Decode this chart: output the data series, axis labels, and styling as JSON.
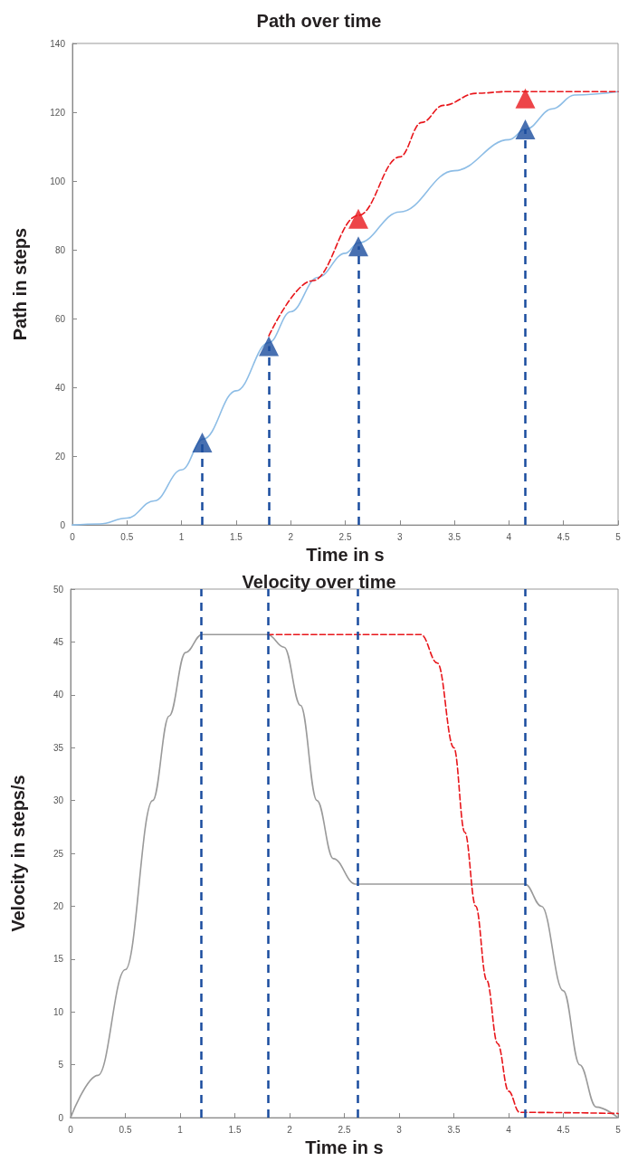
{
  "chart_data": [
    {
      "type": "line",
      "title": "Path over time",
      "xlabel": "Time in s",
      "ylabel": "Path in steps",
      "xlim": [
        0,
        5
      ],
      "xticks": [
        0,
        0.5,
        1,
        1.5,
        2,
        2.5,
        3,
        3.5,
        4,
        4.5,
        5
      ],
      "ylim": [
        0,
        140
      ],
      "yticks": [
        0,
        20,
        40,
        60,
        80,
        100,
        120,
        140
      ],
      "series": [
        {
          "color": "#8dbde6",
          "line_style": "solid",
          "marker": "none",
          "x": [
            0,
            0.25,
            0.5,
            0.75,
            1,
            1.2,
            1.5,
            1.8,
            2,
            2.25,
            2.5,
            2.62,
            3,
            3.5,
            4,
            4.15,
            4.4,
            4.6,
            5
          ],
          "values": [
            0,
            0.3,
            2,
            7,
            16,
            25,
            39,
            53,
            62,
            72,
            79,
            82,
            91,
            103,
            112,
            115,
            121,
            125,
            126
          ]
        },
        {
          "color": "#e8161b",
          "line_style": "dashed",
          "marker": "none",
          "x": [
            1.8,
            2.2,
            2.62,
            3,
            3.2,
            3.4,
            3.7,
            4,
            5
          ],
          "values": [
            55,
            71,
            90,
            107,
            117,
            122,
            125.5,
            126,
            126
          ]
        },
        {
          "type": "scatter",
          "color": "#1a4c9e",
          "marker": "triangle",
          "x": [
            1.19,
            1.8,
            2.62,
            4.15
          ],
          "values": [
            24,
            52,
            81,
            115
          ]
        },
        {
          "type": "scatter",
          "color": "#e8161b",
          "marker": "triangle",
          "x": [
            2.62,
            4.15
          ],
          "values": [
            89,
            124
          ]
        }
      ],
      "ref_lines": [
        {
          "axis": "x",
          "value": 1.19,
          "color": "#1a4c9e",
          "line_style": "dashed"
        },
        {
          "axis": "x",
          "value": 1.8,
          "color": "#1a4c9e",
          "line_style": "dashed"
        },
        {
          "axis": "x",
          "value": 2.62,
          "color": "#1a4c9e",
          "line_style": "dashed"
        },
        {
          "axis": "x",
          "value": 4.15,
          "color": "#1a4c9e",
          "line_style": "dashed"
        }
      ]
    },
    {
      "type": "line",
      "title": "Velocity over time",
      "xlabel": "Time in s",
      "ylabel": "Velocity in steps/s",
      "xlim": [
        0,
        5
      ],
      "xticks": [
        0,
        0.5,
        1,
        1.5,
        2,
        2.5,
        3,
        3.5,
        4,
        4.5,
        5
      ],
      "ylim": [
        0,
        50
      ],
      "yticks": [
        0,
        5,
        10,
        15,
        20,
        25,
        30,
        35,
        40,
        45,
        50
      ],
      "series": [
        {
          "color": "#9a9a9a",
          "line_style": "solid",
          "marker": "none",
          "x": [
            0,
            0.25,
            0.5,
            0.75,
            0.9,
            1.05,
            1.2,
            1.8,
            1.95,
            2.1,
            2.25,
            2.4,
            2.6,
            4.15,
            4.3,
            4.5,
            4.65,
            4.8,
            5
          ],
          "values": [
            0,
            4,
            14,
            30,
            38,
            44,
            45.7,
            45.7,
            44.5,
            39,
            30,
            24.5,
            22.1,
            22.1,
            20,
            12,
            5,
            1,
            0
          ]
        },
        {
          "color": "#e8161b",
          "line_style": "dashed",
          "marker": "none",
          "x": [
            1.8,
            3.2,
            3.35,
            3.5,
            3.6,
            3.7,
            3.8,
            3.9,
            4,
            4.1,
            5
          ],
          "values": [
            45.7,
            45.7,
            43,
            35,
            27,
            20,
            13,
            7,
            2.5,
            0.5,
            0.4
          ]
        }
      ],
      "ref_lines": [
        {
          "axis": "x",
          "value": 1.19,
          "color": "#1a4c9e",
          "line_style": "dashed"
        },
        {
          "axis": "x",
          "value": 1.8,
          "color": "#1a4c9e",
          "line_style": "dashed"
        },
        {
          "axis": "x",
          "value": 2.62,
          "color": "#1a4c9e",
          "line_style": "dashed"
        },
        {
          "axis": "x",
          "value": 4.15,
          "color": "#1a4c9e",
          "line_style": "dashed"
        }
      ]
    }
  ]
}
